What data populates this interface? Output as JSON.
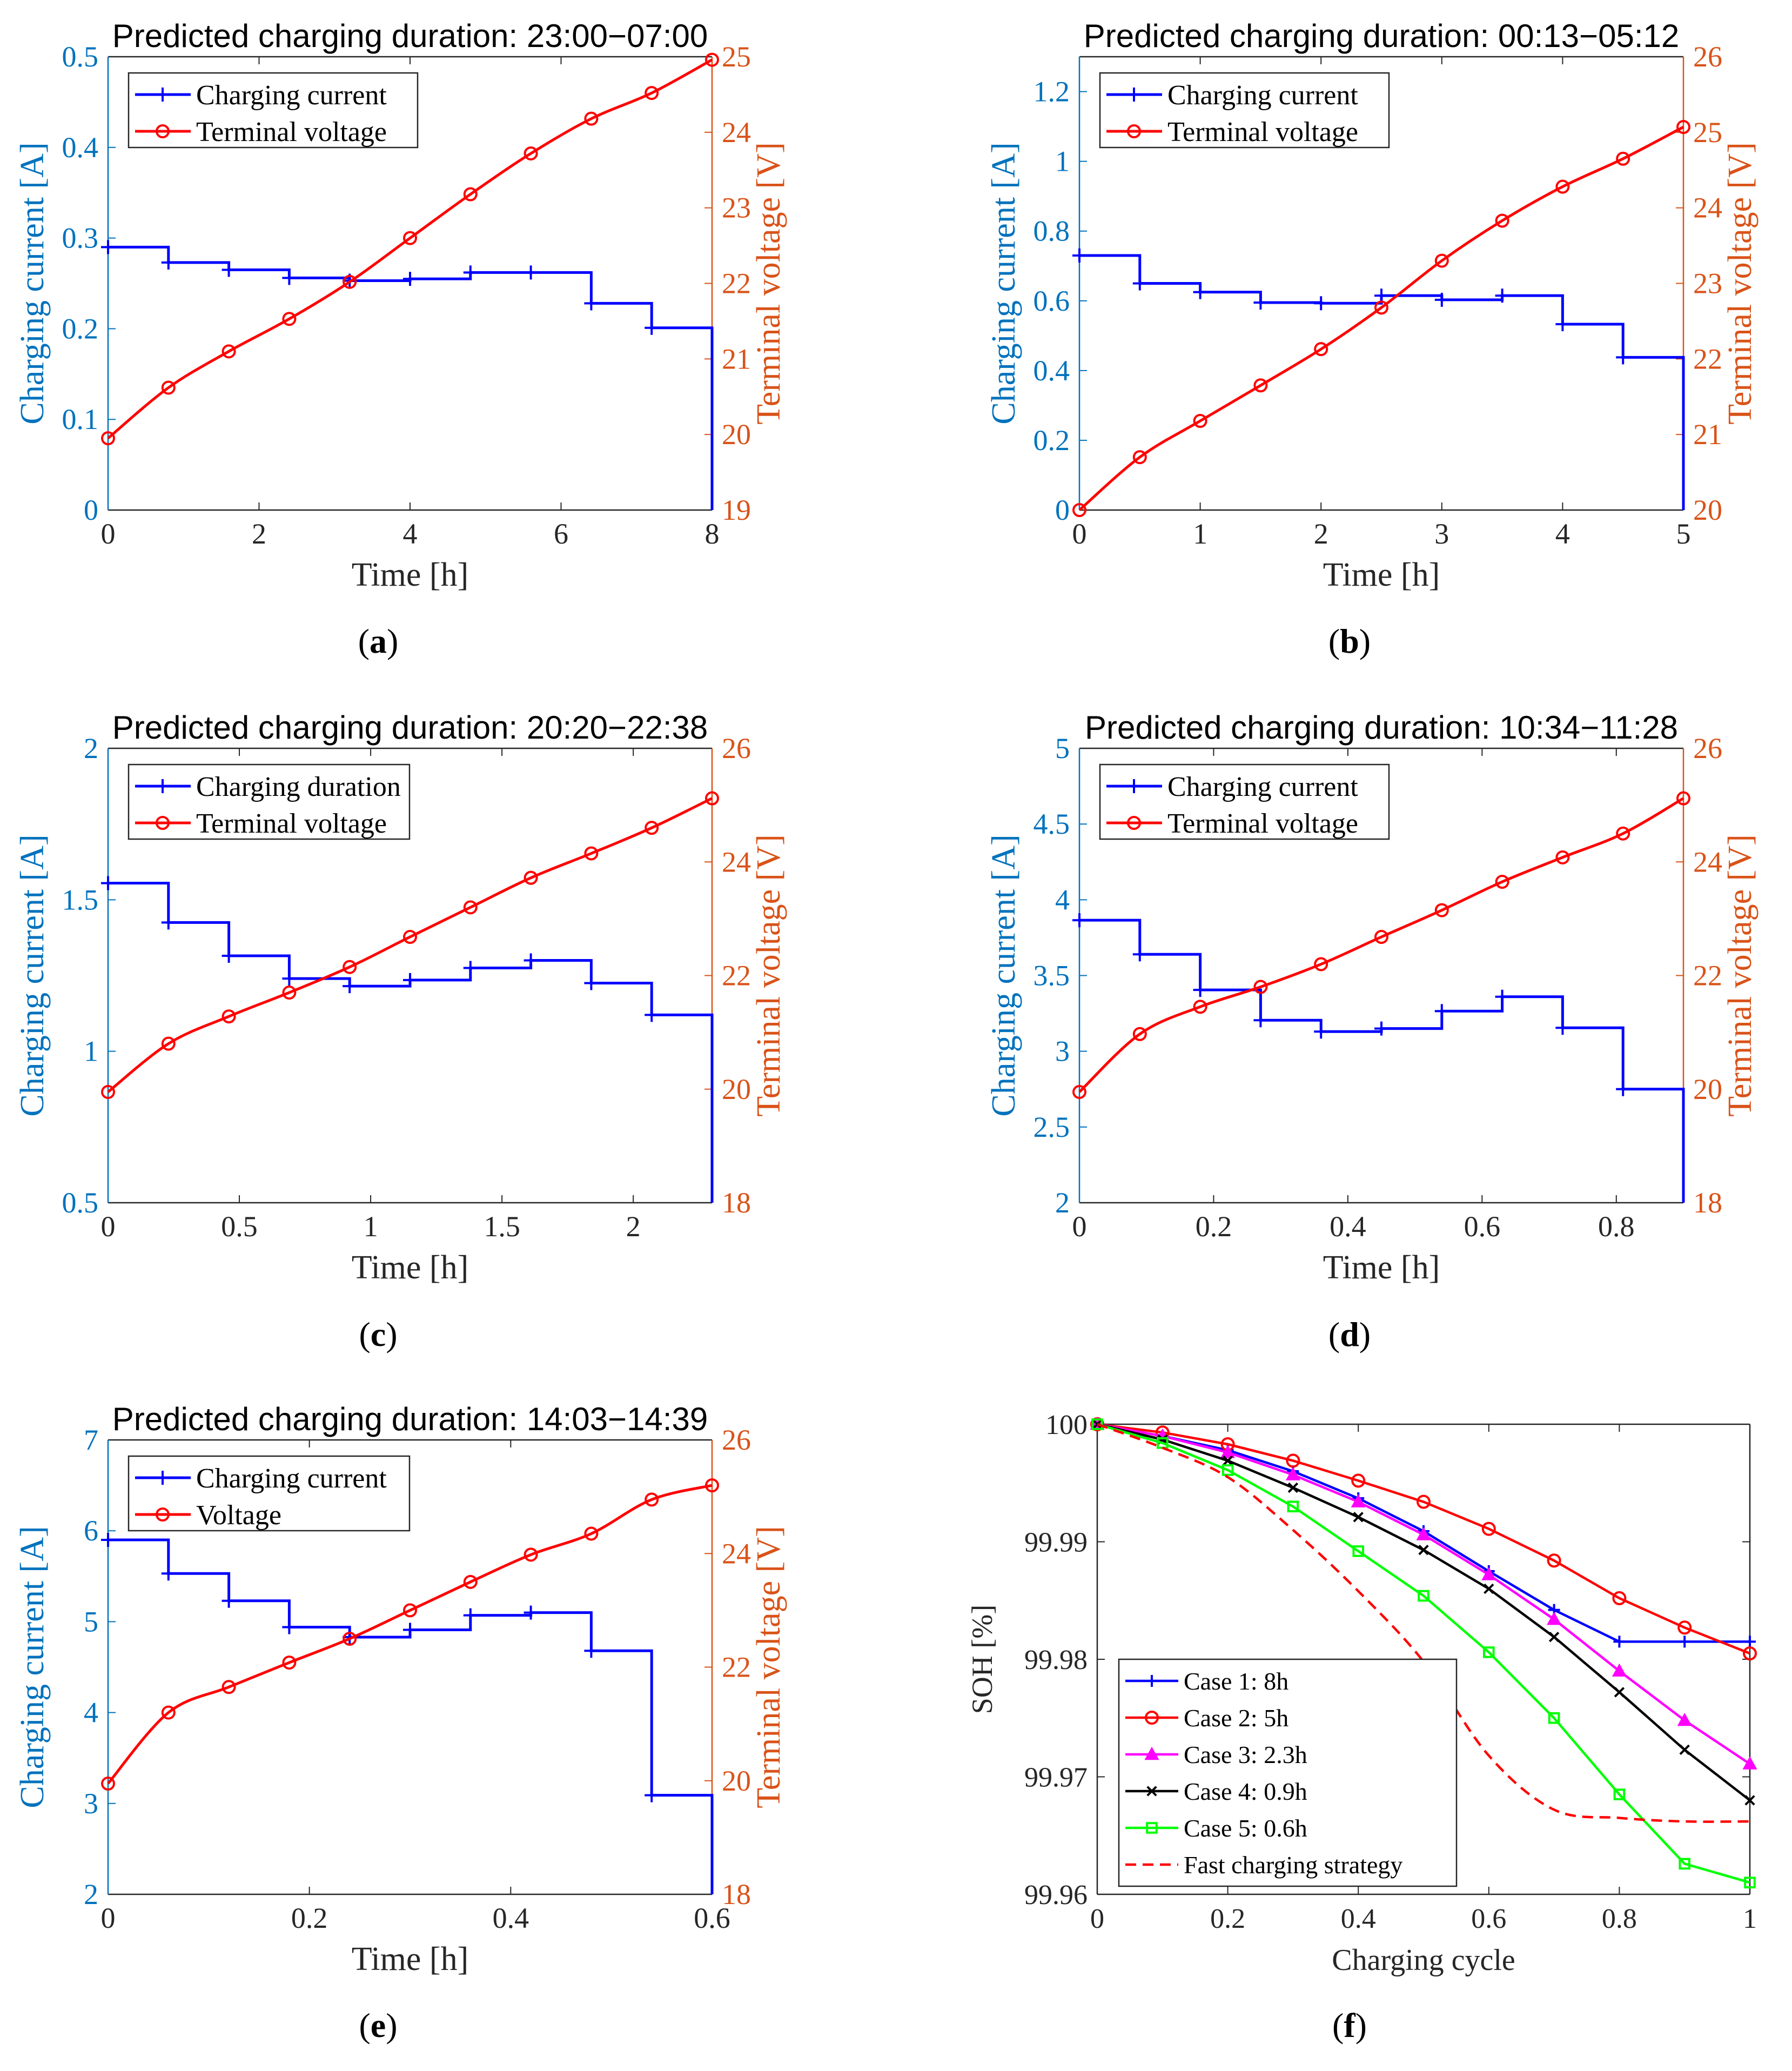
{
  "figure": {
    "panels": [
      {
        "key": "a",
        "caption": "a"
      },
      {
        "key": "b",
        "caption": "b"
      },
      {
        "key": "c",
        "caption": "c"
      },
      {
        "key": "d",
        "caption": "d"
      },
      {
        "key": "e",
        "caption": "e"
      },
      {
        "key": "f",
        "caption": "f"
      }
    ]
  },
  "colors": {
    "current": "#0000ff",
    "voltage": "#ff0000",
    "left_axis": "#0072bd",
    "right_axis": "#d95319",
    "case3": "#ff00ff",
    "case4": "#000000",
    "case5": "#00ff00"
  },
  "chart_data": [
    {
      "id": "a",
      "type": "line",
      "title": "Predicted charging duration: 23:00−07:00",
      "xlabel": "Time [h]",
      "ylabel": "Charging current [A]",
      "y2label": "Terminal voltage [V]",
      "xlim": [
        0,
        8
      ],
      "ylim": [
        0,
        0.5
      ],
      "y2lim": [
        19,
        25
      ],
      "xticks": [
        0,
        2,
        4,
        6,
        8
      ],
      "xtick_labels": [
        "0",
        "2",
        "4",
        "6",
        "8"
      ],
      "yticks": [
        0,
        0.1,
        0.2,
        0.3,
        0.4,
        0.5
      ],
      "ytick_labels": [
        "0",
        "0.1",
        "0.2",
        "0.3",
        "0.4",
        "0.5"
      ],
      "y2ticks": [
        19,
        20,
        21,
        22,
        23,
        24,
        25
      ],
      "y2tick_labels": [
        "19",
        "20",
        "21",
        "22",
        "23",
        "24",
        "25"
      ],
      "legend_location": "top-left",
      "series": [
        {
          "name": "Charging current",
          "axis": "left",
          "style": "step",
          "marker": "+",
          "color_key": "current",
          "x": [
            0,
            0.8,
            1.6,
            2.4,
            3.2,
            4.0,
            4.8,
            5.6,
            6.4,
            7.2,
            8.0
          ],
          "values": [
            0.29,
            0.273,
            0.265,
            0.256,
            0.253,
            0.255,
            0.262,
            0.262,
            0.228,
            0.201,
            0
          ]
        },
        {
          "name": "Terminal voltage",
          "axis": "right",
          "style": "line",
          "marker": "o",
          "color_key": "voltage",
          "x": [
            0,
            0.8,
            1.6,
            2.4,
            3.2,
            4.0,
            4.8,
            5.6,
            6.4,
            7.2,
            8.0
          ],
          "values": [
            19.95,
            20.62,
            21.1,
            21.53,
            22.02,
            22.6,
            23.18,
            23.72,
            24.18,
            24.52,
            24.96
          ]
        }
      ]
    },
    {
      "id": "b",
      "type": "line",
      "title": "Predicted charging duration: 00:13−05:12",
      "xlabel": "Time [h]",
      "ylabel": "Charging current [A]",
      "y2label": "Terminal voltage [V]",
      "xlim": [
        0,
        5
      ],
      "ylim": [
        0,
        1.3
      ],
      "y2lim": [
        20,
        26
      ],
      "xticks": [
        0,
        1,
        2,
        3,
        4,
        5
      ],
      "xtick_labels": [
        "0",
        "1",
        "2",
        "3",
        "4",
        "5"
      ],
      "yticks": [
        0,
        0.2,
        0.4,
        0.6,
        0.8,
        1.0,
        1.2
      ],
      "ytick_labels": [
        "0",
        "0.2",
        "0.4",
        "0.6",
        "0.8",
        "1",
        "1.2"
      ],
      "y2ticks": [
        20,
        21,
        22,
        23,
        24,
        25,
        26
      ],
      "y2tick_labels": [
        "20",
        "21",
        "22",
        "23",
        "24",
        "25",
        "26"
      ],
      "legend_location": "top-left",
      "series": [
        {
          "name": "Charging current",
          "axis": "left",
          "style": "step",
          "marker": "+",
          "color_key": "current",
          "x": [
            0,
            0.5,
            1.0,
            1.5,
            2.0,
            2.5,
            3.0,
            3.5,
            4.0,
            4.5,
            5.0
          ],
          "values": [
            0.73,
            0.65,
            0.625,
            0.595,
            0.593,
            0.615,
            0.603,
            0.615,
            0.533,
            0.438,
            0
          ]
        },
        {
          "name": "Terminal voltage",
          "axis": "right",
          "style": "line",
          "marker": "o",
          "color_key": "voltage",
          "x": [
            0,
            0.5,
            1.0,
            1.5,
            2.0,
            2.5,
            3.0,
            3.5,
            4.0,
            4.5,
            5.0
          ],
          "values": [
            20.0,
            20.7,
            21.18,
            21.65,
            22.13,
            22.68,
            23.3,
            23.83,
            24.28,
            24.65,
            25.07
          ]
        }
      ]
    },
    {
      "id": "c",
      "type": "line",
      "title": "Predicted charging duration: 20:20−22:38",
      "xlabel": "Time [h]",
      "ylabel": "Charging current [A]",
      "y2label": "Terminal voltage [V]",
      "xlim": [
        0,
        2.3
      ],
      "ylim": [
        0.5,
        2
      ],
      "y2lim": [
        18,
        26
      ],
      "xticks": [
        0,
        0.5,
        1,
        1.5,
        2
      ],
      "xtick_labels": [
        "0",
        "0.5",
        "1",
        "1.5",
        "2"
      ],
      "yticks": [
        0.5,
        1,
        1.5,
        2
      ],
      "ytick_labels": [
        "0.5",
        "1",
        "1.5",
        "2"
      ],
      "y2ticks": [
        18,
        20,
        22,
        24,
        26
      ],
      "y2tick_labels": [
        "18",
        "20",
        "22",
        "24",
        "26"
      ],
      "legend_location": "top-left",
      "series": [
        {
          "name": "Charging duration",
          "axis": "left",
          "style": "step",
          "marker": "+",
          "color_key": "current",
          "x": [
            0,
            0.23,
            0.46,
            0.69,
            0.92,
            1.15,
            1.38,
            1.61,
            1.84,
            2.07,
            2.3
          ],
          "values": [
            1.555,
            1.425,
            1.315,
            1.24,
            1.215,
            1.235,
            1.275,
            1.3,
            1.225,
            1.12,
            0.5
          ]
        },
        {
          "name": "Terminal voltage",
          "axis": "right",
          "style": "line",
          "marker": "o",
          "color_key": "voltage",
          "x": [
            0,
            0.23,
            0.46,
            0.69,
            0.92,
            1.15,
            1.38,
            1.61,
            1.84,
            2.07,
            2.3
          ],
          "values": [
            19.95,
            20.8,
            21.28,
            21.7,
            22.15,
            22.68,
            23.2,
            23.72,
            24.15,
            24.6,
            25.12
          ]
        }
      ]
    },
    {
      "id": "d",
      "type": "line",
      "title": "Predicted charging duration: 10:34−11:28",
      "xlabel": "Time [h]",
      "ylabel": "Charging current [A]",
      "y2label": "Terminal voltage [V]",
      "xlim": [
        0,
        0.9
      ],
      "ylim": [
        2,
        5
      ],
      "y2lim": [
        18,
        26
      ],
      "xticks": [
        0,
        0.2,
        0.4,
        0.6,
        0.8
      ],
      "xtick_labels": [
        "0",
        "0.2",
        "0.4",
        "0.6",
        "0.8"
      ],
      "yticks": [
        2,
        2.5,
        3,
        3.5,
        4,
        4.5,
        5
      ],
      "ytick_labels": [
        "2",
        "2.5",
        "3",
        "3.5",
        "4",
        "4.5",
        "5"
      ],
      "y2ticks": [
        18,
        20,
        22,
        24,
        26
      ],
      "y2tick_labels": [
        "18",
        "20",
        "22",
        "24",
        "26"
      ],
      "legend_location": "top-left",
      "series": [
        {
          "name": "Charging current",
          "axis": "left",
          "style": "step",
          "marker": "+",
          "color_key": "current",
          "x": [
            0,
            0.09,
            0.18,
            0.27,
            0.36,
            0.45,
            0.54,
            0.63,
            0.72,
            0.81,
            0.9
          ],
          "values": [
            3.865,
            3.64,
            3.405,
            3.205,
            3.13,
            3.15,
            3.265,
            3.36,
            3.155,
            2.75,
            2
          ]
        },
        {
          "name": "Terminal voltage",
          "axis": "right",
          "style": "line",
          "marker": "o",
          "color_key": "voltage",
          "x": [
            0,
            0.09,
            0.18,
            0.27,
            0.36,
            0.45,
            0.54,
            0.63,
            0.72,
            0.81,
            0.9
          ],
          "values": [
            19.95,
            20.97,
            21.45,
            21.8,
            22.2,
            22.68,
            23.15,
            23.65,
            24.08,
            24.5,
            25.12
          ]
        }
      ]
    },
    {
      "id": "e",
      "type": "line",
      "title": "Predicted charging duration: 14:03−14:39",
      "xlabel": "Time [h]",
      "ylabel": "Charging current [A]",
      "y2label": "Terminal voltage [V]",
      "xlim": [
        0,
        0.6
      ],
      "ylim": [
        2,
        7
      ],
      "y2lim": [
        18,
        26
      ],
      "xticks": [
        0,
        0.2,
        0.4,
        0.6
      ],
      "xtick_labels": [
        "0",
        "0.2",
        "0.4",
        "0.6"
      ],
      "yticks": [
        2,
        3,
        4,
        5,
        6,
        7
      ],
      "ytick_labels": [
        "2",
        "3",
        "4",
        "5",
        "6",
        "7"
      ],
      "y2ticks": [
        18,
        20,
        22,
        24,
        26
      ],
      "y2tick_labels": [
        "18",
        "20",
        "22",
        "24",
        "26"
      ],
      "legend_location": "top-left",
      "series": [
        {
          "name": "Charging current",
          "axis": "left",
          "style": "step",
          "marker": "+",
          "color_key": "current",
          "x": [
            0,
            0.06,
            0.12,
            0.18,
            0.24,
            0.3,
            0.36,
            0.42,
            0.48,
            0.54,
            0.6
          ],
          "values": [
            5.9,
            5.53,
            5.23,
            4.94,
            4.83,
            4.91,
            5.07,
            5.1,
            4.68,
            3.09,
            2
          ]
        },
        {
          "name": "Voltage",
          "axis": "right",
          "style": "line",
          "marker": "o",
          "color_key": "voltage",
          "x": [
            0,
            0.06,
            0.12,
            0.18,
            0.24,
            0.3,
            0.36,
            0.42,
            0.48,
            0.54,
            0.6
          ],
          "values": [
            19.95,
            21.2,
            21.65,
            22.08,
            22.5,
            23.0,
            23.5,
            23.98,
            24.35,
            24.95,
            25.2
          ]
        }
      ]
    },
    {
      "id": "f",
      "type": "line",
      "title": "",
      "xlabel": "Charging cycle",
      "ylabel": "SOH [%]",
      "y2label": "",
      "xlim": [
        0,
        1
      ],
      "ylim": [
        99.96,
        100
      ],
      "xticks": [
        0,
        0.2,
        0.4,
        0.6,
        0.8,
        1
      ],
      "xtick_labels": [
        "0",
        "0.2",
        "0.4",
        "0.6",
        "0.8",
        "1"
      ],
      "yticks": [
        99.96,
        99.97,
        99.98,
        99.99,
        100
      ],
      "ytick_labels": [
        "99.96",
        "99.97",
        "99.98",
        "99.99",
        "100"
      ],
      "legend_location": "bottom-left",
      "x": [
        0,
        0.1,
        0.2,
        0.3,
        0.4,
        0.5,
        0.6,
        0.7,
        0.8,
        0.9,
        1.0
      ],
      "series": [
        {
          "name": "Case 1: 8h",
          "marker": "+",
          "color_key": "current",
          "dash": false,
          "values": [
            100,
            99.999,
            99.9978,
            99.996,
            99.9937,
            99.9909,
            99.9875,
            99.9842,
            99.9815,
            99.9815,
            99.9815
          ]
        },
        {
          "name": "Case 2: 5h",
          "marker": "o",
          "color_key": "voltage",
          "dash": false,
          "values": [
            100,
            99.9993,
            99.9983,
            99.9969,
            99.9952,
            99.9934,
            99.9911,
            99.9884,
            99.9852,
            99.9827,
            99.9805
          ]
        },
        {
          "name": "Case 3: 2.3h",
          "marker": "^",
          "color_key": "case3",
          "dash": false,
          "values": [
            100,
            99.999,
            99.9976,
            99.9957,
            99.9934,
            99.9906,
            99.9872,
            99.9834,
            99.979,
            99.9748,
            99.9711
          ]
        },
        {
          "name": "Case 4: 0.9h",
          "marker": "x",
          "color_key": "case4",
          "dash": false,
          "values": [
            100,
            99.9987,
            99.9969,
            99.9946,
            99.9921,
            99.9893,
            99.986,
            99.9819,
            99.9772,
            99.9723,
            99.968
          ]
        },
        {
          "name": "Case 5: 0.6h",
          "marker": "s",
          "color_key": "case5",
          "dash": false,
          "values": [
            100,
            99.9984,
            99.9961,
            99.993,
            99.9892,
            99.9854,
            99.9806,
            99.975,
            99.9685,
            99.9626,
            99.961
          ]
        },
        {
          "name": "Fast charging strategy",
          "marker": "none",
          "color_key": "voltage",
          "dash": true,
          "values": [
            100,
            99.998,
            99.9955,
            99.991,
            99.9858,
            99.9798,
            99.9718,
            99.9672,
            99.9665,
            99.9662,
            99.9662
          ]
        }
      ]
    }
  ]
}
